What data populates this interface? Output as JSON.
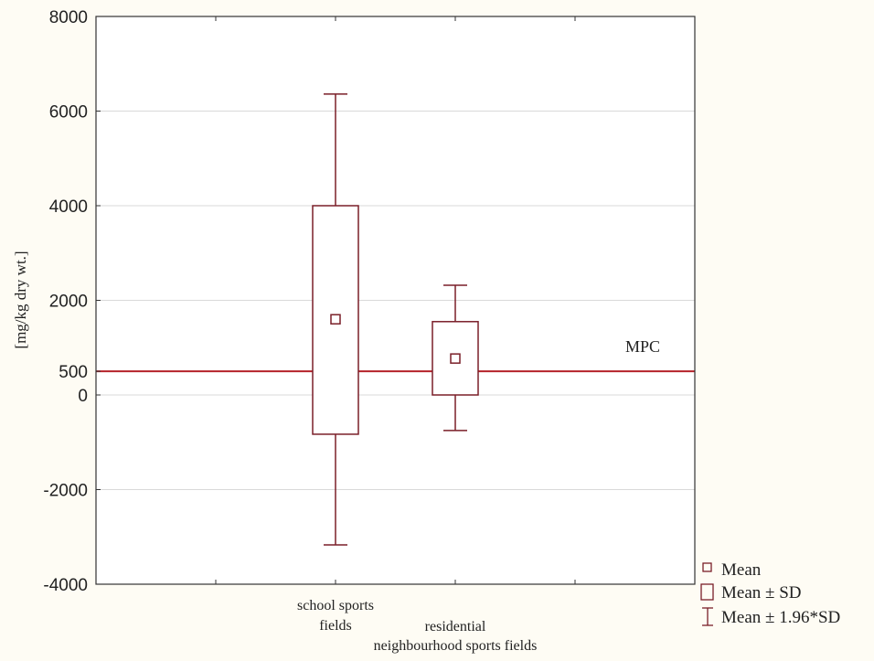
{
  "chart_data": {
    "type": "box",
    "title": "",
    "xlabel": "",
    "ylabel": "[mg/kg dry wt.]",
    "ylim": [
      -4000,
      8000
    ],
    "yticks": [
      -4000,
      -2000,
      0,
      500,
      2000,
      4000,
      6000,
      8000
    ],
    "grid": true,
    "categories": [
      "school sports fields",
      "residential neighbourhood sports fields"
    ],
    "category_label_lines": [
      [
        "school sports",
        "fields"
      ],
      [
        "residential",
        "neighbourhood sports fields"
      ]
    ],
    "series": [
      {
        "name": "school sports fields",
        "mean": 1600,
        "mean_minus_sd": -830,
        "mean_plus_sd": 4000,
        "mean_minus_1_96sd": -3170,
        "mean_plus_1_96sd": 6360
      },
      {
        "name": "residential neighbourhood sports fields",
        "mean": 770,
        "mean_minus_sd": 0,
        "mean_plus_sd": 1550,
        "mean_minus_1_96sd": -750,
        "mean_plus_1_96sd": 2320
      }
    ],
    "reference_line": {
      "label": "MPC",
      "value": 500,
      "color": "#b5222a"
    },
    "legend": {
      "position": "bottom-right",
      "entries": [
        "Mean",
        "Mean ± SD",
        "Mean ± 1.96*SD"
      ]
    },
    "colors": {
      "box": "#7a1f28",
      "grid": "#d9d9d9",
      "background": "#fefcf4",
      "plot_bg": "#ffffff"
    }
  }
}
